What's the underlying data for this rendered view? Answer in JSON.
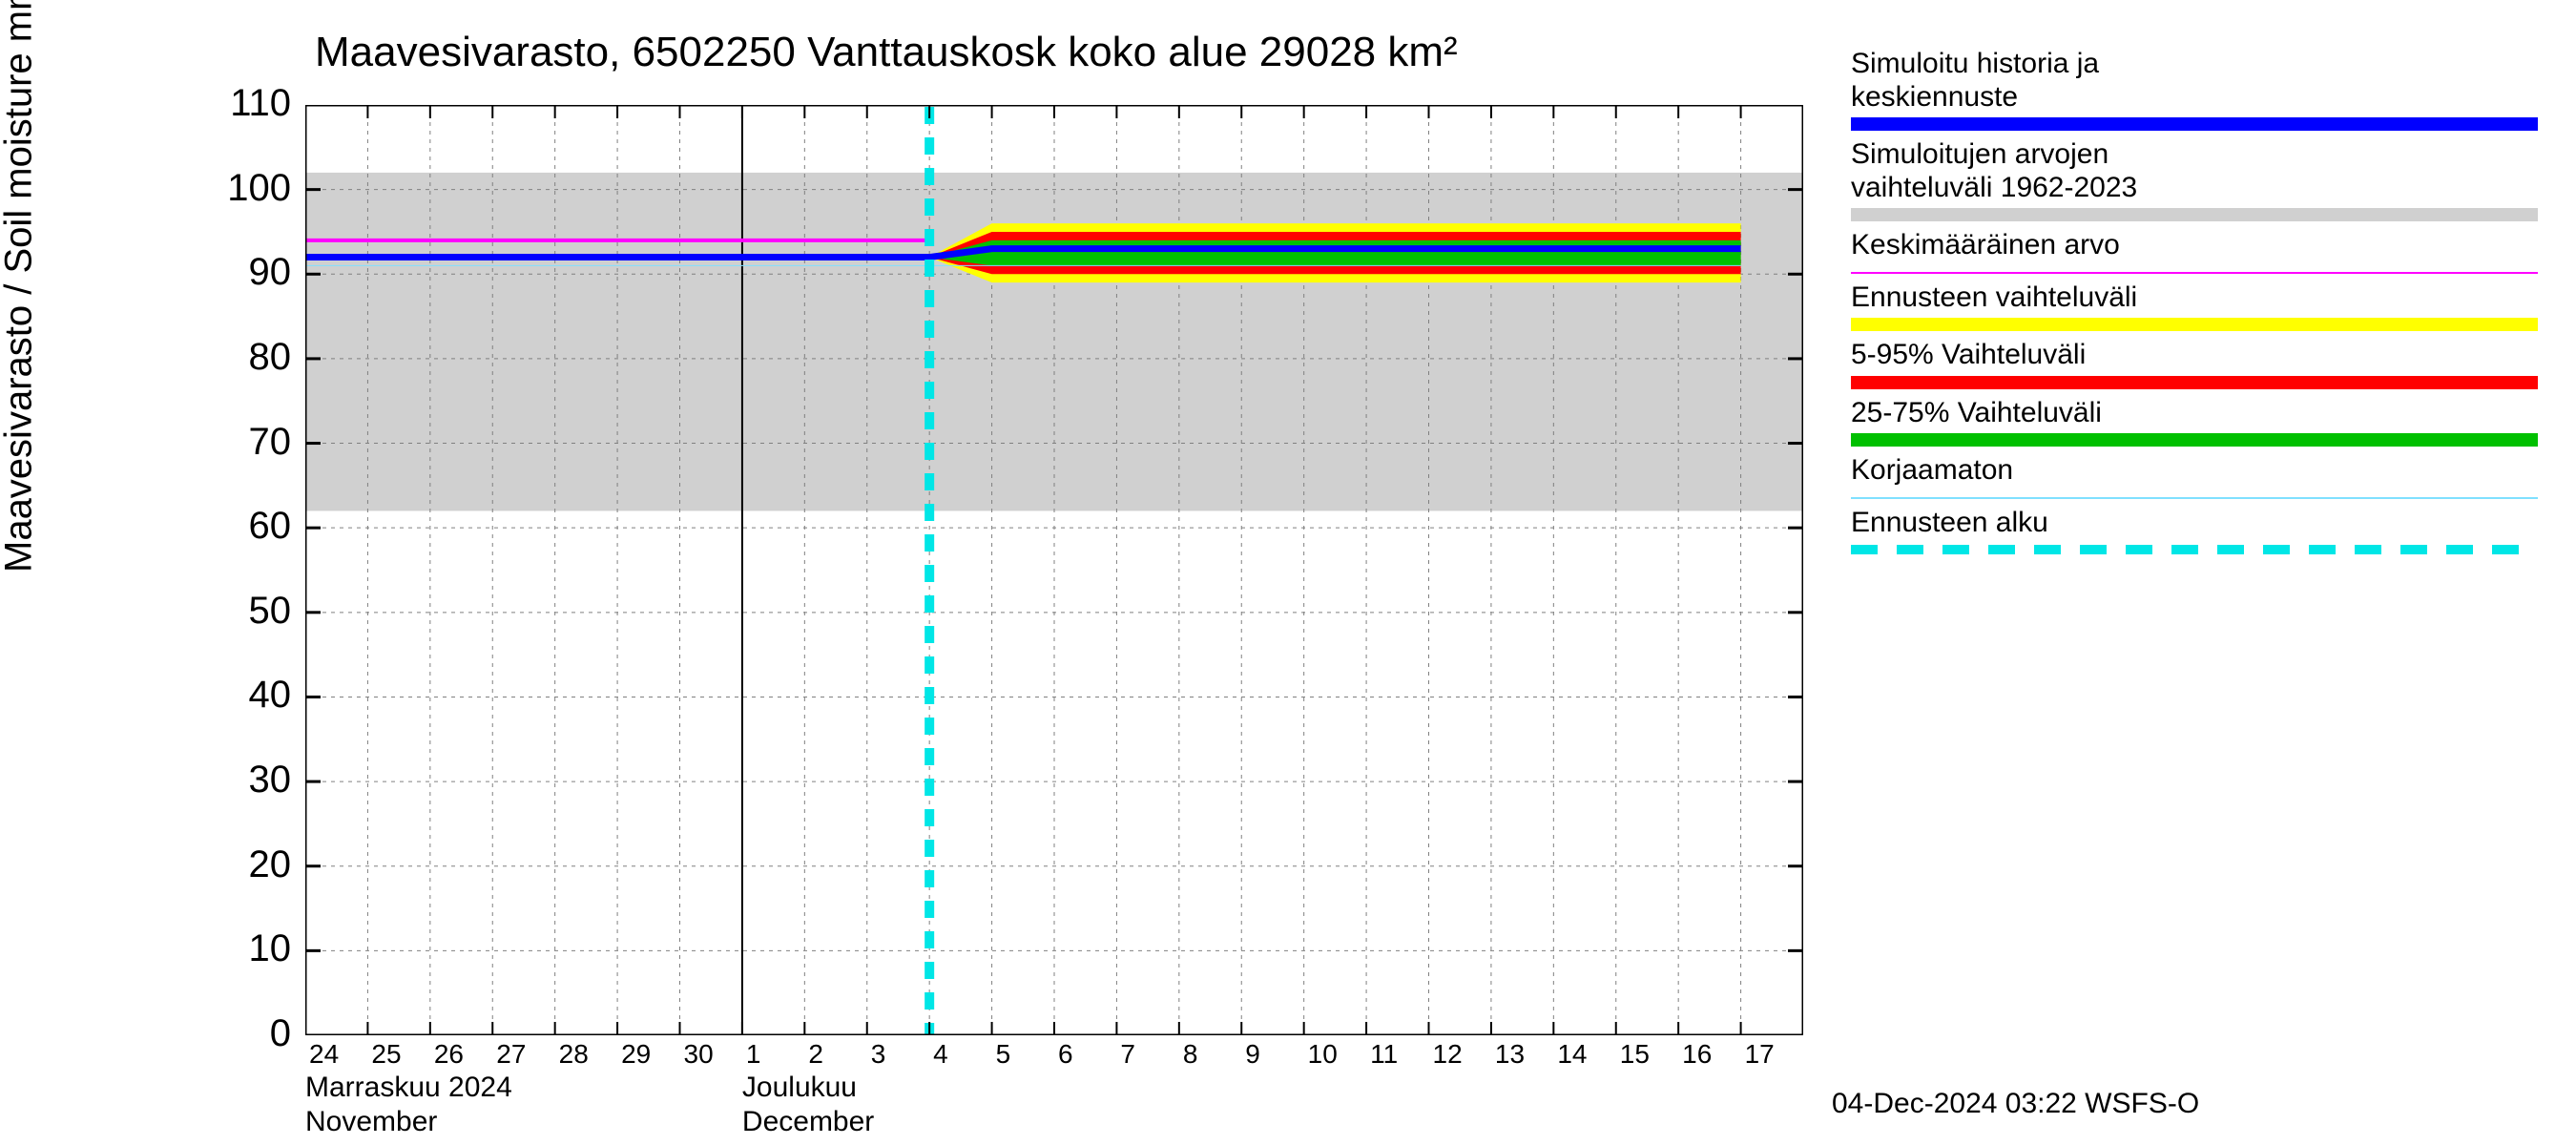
{
  "title": "Maavesivarasto, 6502250 Vanttauskosk koko alue 29028 km²",
  "y_axis_label": "Maavesivarasto / Soil moisture   mm",
  "footer": "04-Dec-2024 03:22 WSFS-O",
  "chart": {
    "type": "line",
    "background_color": "#ffffff",
    "grid_color": "#808080",
    "axis_color": "#000000",
    "ylim": [
      0,
      110
    ],
    "yticks": [
      0,
      10,
      20,
      30,
      40,
      50,
      60,
      70,
      80,
      90,
      100,
      110
    ],
    "x_categories": [
      "24",
      "25",
      "26",
      "27",
      "28",
      "29",
      "30",
      "1",
      "2",
      "3",
      "4",
      "5",
      "6",
      "7",
      "8",
      "9",
      "10",
      "11",
      "12",
      "13",
      "14",
      "15",
      "16",
      "17"
    ],
    "month_separator_index": 7,
    "x_month_blocks": [
      {
        "top_fi": "Marraskuu 2024",
        "bottom_en": "November",
        "at_index": 0
      },
      {
        "top_fi": "Joulukuu",
        "bottom_en": "December",
        "at_index": 7
      }
    ],
    "historic_band": {
      "low": 62,
      "high": 102,
      "color": "#d0d0d0"
    },
    "forecast_start_index": 10,
    "forecast_line_color": "#00e6e6",
    "series_blue": {
      "color": "#0000ff",
      "width": 7,
      "values": [
        92,
        92,
        92,
        92,
        92,
        92,
        92,
        92,
        92,
        92,
        92,
        93,
        93,
        93,
        93,
        93,
        93,
        93,
        93,
        93,
        93,
        93,
        93,
        93
      ]
    },
    "series_magenta": {
      "color": "#ff00ff",
      "width": 4,
      "values": [
        94,
        94,
        94,
        94,
        94,
        94,
        94,
        94,
        94,
        94,
        94,
        null,
        null,
        null,
        null,
        null,
        null,
        null,
        null,
        null,
        null,
        null,
        null,
        null
      ]
    },
    "band_yellow": {
      "color": "#ffff00",
      "low": [
        92,
        92,
        92,
        92,
        92,
        92,
        92,
        92,
        92,
        92,
        92,
        89,
        89,
        89,
        89,
        89,
        89,
        89,
        89,
        89,
        89,
        89,
        89,
        89
      ],
      "high": [
        92,
        92,
        92,
        92,
        92,
        92,
        92,
        92,
        92,
        92,
        92,
        96,
        96,
        96,
        96,
        96,
        96,
        96,
        96,
        96,
        96,
        96,
        96,
        96
      ]
    },
    "band_red": {
      "color": "#ff0000",
      "low": [
        92,
        92,
        92,
        92,
        92,
        92,
        92,
        92,
        92,
        92,
        92,
        90,
        90,
        90,
        90,
        90,
        90,
        90,
        90,
        90,
        90,
        90,
        90,
        90
      ],
      "high": [
        92,
        92,
        92,
        92,
        92,
        92,
        92,
        92,
        92,
        92,
        92,
        95,
        95,
        95,
        95,
        95,
        95,
        95,
        95,
        95,
        95,
        95,
        95,
        95
      ]
    },
    "band_green": {
      "color": "#00c000",
      "low": [
        92,
        92,
        92,
        92,
        92,
        92,
        92,
        92,
        92,
        92,
        92,
        91,
        91,
        91,
        91,
        91,
        91,
        91,
        91,
        91,
        91,
        91,
        91,
        91
      ],
      "high": [
        92,
        92,
        92,
        92,
        92,
        92,
        92,
        92,
        92,
        92,
        92,
        94,
        94,
        94,
        94,
        94,
        94,
        94,
        94,
        94,
        94,
        94,
        94,
        94
      ]
    },
    "series_cyan_thin": {
      "color": "#80e0ff",
      "width": 1,
      "values": [
        91,
        91,
        91,
        91,
        91,
        91,
        91,
        91,
        91,
        91,
        91,
        91,
        91,
        91,
        91,
        91,
        91,
        91,
        91,
        91,
        91,
        91,
        91,
        91
      ]
    }
  },
  "legend": [
    {
      "text_lines": [
        "Simuloitu historia ja",
        "keskiennuste"
      ],
      "swatch_color": "#0000ff",
      "type": "thick"
    },
    {
      "text_lines": [
        "Simuloitujen arvojen",
        "vaihteluväli 1962-2023"
      ],
      "swatch_color": "#d0d0d0",
      "type": "thick"
    },
    {
      "text_lines": [
        "Keskimääräinen arvo"
      ],
      "swatch_color": "#ff00ff",
      "type": "thin"
    },
    {
      "text_lines": [
        "Ennusteen vaihteluväli"
      ],
      "swatch_color": "#ffff00",
      "type": "thick"
    },
    {
      "text_lines": [
        "5-95% Vaihteluväli"
      ],
      "swatch_color": "#ff0000",
      "type": "thick"
    },
    {
      "text_lines": [
        "25-75% Vaihteluväli"
      ],
      "swatch_color": "#00c000",
      "type": "thick"
    },
    {
      "text_lines": [
        "Korjaamaton"
      ],
      "swatch_color": "#80e0ff",
      "type": "thin"
    },
    {
      "text_lines": [
        "Ennusteen alku"
      ],
      "swatch_color": "#00e6e6",
      "type": "dashed"
    }
  ]
}
